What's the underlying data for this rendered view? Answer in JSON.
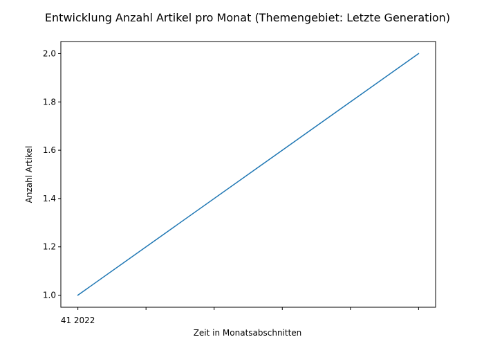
{
  "chart_data": {
    "type": "line",
    "title": "Entwicklung Anzahl Artikel pro Monat (Themengebiet: Letzte Generation)",
    "xlabel": "Zeit in Monatsabschnitten",
    "ylabel": "Anzahl Artikel",
    "x_tick_labels": [
      "41 2022",
      "",
      "",
      "",
      "",
      ""
    ],
    "y_ticks": [
      1.0,
      1.2,
      1.4,
      1.6,
      1.8,
      2.0
    ],
    "y_tick_labels": [
      "1.0",
      "1.2",
      "1.4",
      "1.6",
      "1.8",
      "2.0"
    ],
    "xlim": [
      -0.25,
      5.25
    ],
    "ylim": [
      0.95,
      2.05
    ],
    "series": [
      {
        "x": [
          0,
          5
        ],
        "values": [
          1.0,
          2.0
        ],
        "color": "#1f77b4"
      }
    ],
    "grid": false,
    "legend": "none"
  }
}
